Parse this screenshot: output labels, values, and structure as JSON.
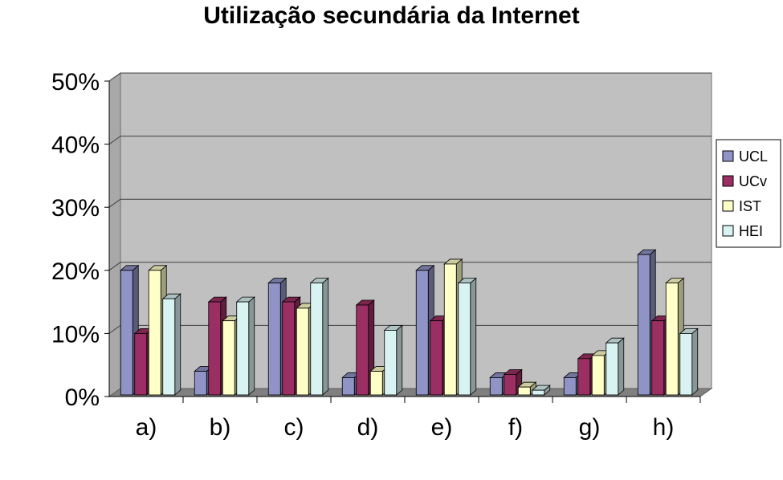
{
  "chart_data": {
    "type": "bar",
    "title": "Utilização secundária da Internet",
    "categories": [
      "a)",
      "b)",
      "c)",
      "d)",
      "e)",
      "f)",
      "g)",
      "h)"
    ],
    "series": [
      {
        "name": "UCL",
        "color": "#8f93c6",
        "values": [
          20,
          4,
          18,
          3,
          20,
          3,
          3,
          22.5
        ]
      },
      {
        "name": "UCv",
        "color": "#9b2f63",
        "values": [
          10,
          15,
          15,
          14.5,
          12,
          3.5,
          6,
          12
        ]
      },
      {
        "name": "IST",
        "color": "#ffffc8",
        "values": [
          20,
          12,
          14,
          4,
          21,
          1.5,
          6.5,
          18
        ]
      },
      {
        "name": "HEI",
        "color": "#d9f3f3",
        "values": [
          15.5,
          15,
          18,
          10.5,
          18,
          1,
          8.5,
          10
        ]
      }
    ],
    "y_ticks": [
      "0%",
      "10%",
      "20%",
      "30%",
      "40%",
      "50%"
    ],
    "ylim": [
      0,
      50
    ],
    "grid": true,
    "legend_position": "right"
  }
}
